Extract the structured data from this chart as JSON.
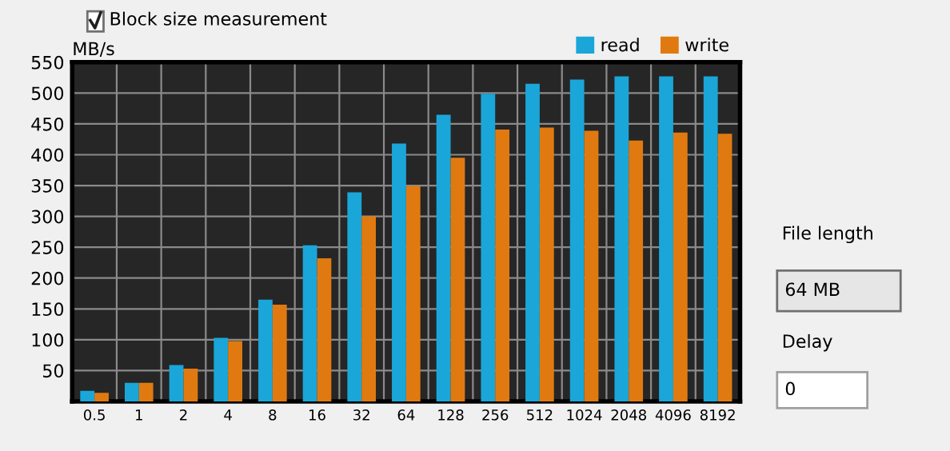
{
  "chart_data": {
    "type": "bar",
    "ylabel": "MB/s",
    "categories": [
      "0.5",
      "1",
      "2",
      "4",
      "8",
      "16",
      "32",
      "64",
      "128",
      "256",
      "512",
      "1024",
      "2048",
      "4096",
      "8192"
    ],
    "series": [
      {
        "name": "read",
        "color": "#1aa6d8",
        "values": [
          17,
          30,
          59,
          103,
          165,
          253,
          339,
          418,
          465,
          499,
          515,
          522,
          527,
          527,
          527
        ]
      },
      {
        "name": "write",
        "color": "#e07a10",
        "values": [
          14,
          30,
          53,
          98,
          157,
          232,
          300,
          349,
          395,
          441,
          444,
          439,
          423,
          436,
          434
        ]
      }
    ],
    "ylim": [
      0,
      550
    ],
    "yticks": [
      50,
      100,
      150,
      200,
      250,
      300,
      350,
      400,
      450,
      500,
      550
    ],
    "grid": true,
    "legend": "top right",
    "annotations": [
      "Block size measurement",
      "File length",
      "64 MB",
      "Delay",
      "0"
    ]
  }
}
